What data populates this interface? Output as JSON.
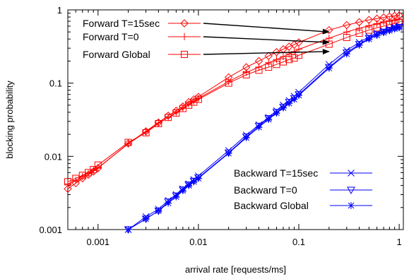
{
  "chart_data": {
    "type": "line",
    "title": "",
    "xlabel": "arrival rate [requests/ms]",
    "ylabel": "blocking probability",
    "x_scale": "log",
    "y_scale": "log",
    "xlim": [
      0.0005,
      1.1
    ],
    "ylim": [
      0.001,
      1
    ],
    "grid": false,
    "legend_placement": [
      "top-left",
      "bottom-right"
    ],
    "x_ticks": [
      {
        "value": 0.001,
        "label": "0.001"
      },
      {
        "value": 0.01,
        "label": "0.01"
      },
      {
        "value": 0.1,
        "label": "0.1"
      },
      {
        "value": 1,
        "label": "1"
      }
    ],
    "y_ticks": [
      {
        "value": 0.001,
        "label": "0.001"
      },
      {
        "value": 0.01,
        "label": "0.01"
      },
      {
        "value": 0.1,
        "label": "0.1"
      },
      {
        "value": 1,
        "label": "1"
      }
    ],
    "series": [
      {
        "name": "Forward T=15sec",
        "color": "#ff0000",
        "marker": "diamond",
        "x": [
          0.0005,
          0.0006,
          0.0007,
          0.0008,
          0.0009,
          0.001,
          0.002,
          0.003,
          0.004,
          0.005,
          0.006,
          0.007,
          0.008,
          0.009,
          0.01,
          0.02,
          0.03,
          0.04,
          0.05,
          0.06,
          0.07,
          0.08,
          0.09,
          0.1,
          0.2,
          0.3,
          0.4,
          0.5,
          0.6,
          0.7,
          0.8,
          0.9,
          1.0
        ],
        "y": [
          0.0036,
          0.0043,
          0.005,
          0.0056,
          0.0062,
          0.0069,
          0.015,
          0.022,
          0.029,
          0.036,
          0.042,
          0.048,
          0.055,
          0.06,
          0.065,
          0.12,
          0.165,
          0.2,
          0.235,
          0.265,
          0.29,
          0.315,
          0.335,
          0.36,
          0.53,
          0.62,
          0.68,
          0.73,
          0.76,
          0.79,
          0.81,
          0.83,
          0.84
        ]
      },
      {
        "name": "Forward T=0",
        "color": "#ff0000",
        "marker": "plus",
        "x": [
          0.0005,
          0.0006,
          0.0007,
          0.0008,
          0.0009,
          0.001,
          0.002,
          0.003,
          0.004,
          0.005,
          0.006,
          0.007,
          0.008,
          0.009,
          0.01,
          0.02,
          0.03,
          0.04,
          0.05,
          0.06,
          0.07,
          0.08,
          0.09,
          0.1,
          0.2,
          0.3,
          0.4,
          0.5,
          0.6,
          0.7,
          0.8,
          0.9,
          1.0
        ],
        "y": [
          0.0042,
          0.0047,
          0.0053,
          0.0058,
          0.0064,
          0.007,
          0.0148,
          0.0215,
          0.0285,
          0.034,
          0.04,
          0.046,
          0.052,
          0.057,
          0.062,
          0.105,
          0.14,
          0.165,
          0.19,
          0.21,
          0.23,
          0.25,
          0.27,
          0.29,
          0.41,
          0.5,
          0.56,
          0.61,
          0.65,
          0.69,
          0.71,
          0.73,
          0.75
        ]
      },
      {
        "name": "Forward Global",
        "color": "#ff0000",
        "marker": "square",
        "x": [
          0.0005,
          0.0006,
          0.0007,
          0.0008,
          0.0009,
          0.001,
          0.002,
          0.003,
          0.004,
          0.005,
          0.006,
          0.007,
          0.008,
          0.009,
          0.01,
          0.02,
          0.03,
          0.04,
          0.05,
          0.06,
          0.07,
          0.08,
          0.09,
          0.1,
          0.2,
          0.3,
          0.4,
          0.5,
          0.6,
          0.7,
          0.8,
          0.9,
          1.0
        ],
        "y": [
          0.0045,
          0.005,
          0.0055,
          0.006,
          0.0066,
          0.0076,
          0.0155,
          0.021,
          0.028,
          0.034,
          0.039,
          0.045,
          0.05,
          0.055,
          0.06,
          0.1,
          0.13,
          0.15,
          0.165,
          0.18,
          0.195,
          0.21,
          0.22,
          0.24,
          0.34,
          0.42,
          0.48,
          0.53,
          0.57,
          0.6,
          0.63,
          0.65,
          0.67
        ]
      },
      {
        "name": "Backward T=15sec",
        "color": "#0000ff",
        "marker": "x",
        "x": [
          0.002,
          0.003,
          0.004,
          0.005,
          0.006,
          0.007,
          0.008,
          0.009,
          0.01,
          0.02,
          0.03,
          0.04,
          0.05,
          0.06,
          0.07,
          0.08,
          0.09,
          0.1,
          0.2,
          0.3,
          0.4,
          0.5,
          0.6,
          0.7,
          0.8,
          0.9,
          1.0
        ],
        "y": [
          0.001,
          0.0015,
          0.0019,
          0.0025,
          0.003,
          0.0036,
          0.0042,
          0.0048,
          0.0054,
          0.012,
          0.0195,
          0.027,
          0.034,
          0.042,
          0.05,
          0.058,
          0.066,
          0.075,
          0.18,
          0.28,
          0.36,
          0.43,
          0.48,
          0.52,
          0.55,
          0.58,
          0.6
        ]
      },
      {
        "name": "Backward T=0",
        "color": "#0000ff",
        "marker": "triangle-down",
        "x": [
          0.002,
          0.003,
          0.004,
          0.005,
          0.006,
          0.007,
          0.008,
          0.009,
          0.01,
          0.02,
          0.03,
          0.04,
          0.05,
          0.06,
          0.07,
          0.08,
          0.09,
          0.1,
          0.2,
          0.3,
          0.4,
          0.5,
          0.6,
          0.7,
          0.8,
          0.9,
          1.0
        ],
        "y": [
          0.001,
          0.0014,
          0.0018,
          0.0024,
          0.0029,
          0.0035,
          0.0041,
          0.0046,
          0.0051,
          0.0112,
          0.0185,
          0.026,
          0.033,
          0.04,
          0.047,
          0.055,
          0.062,
          0.07,
          0.165,
          0.26,
          0.34,
          0.41,
          0.46,
          0.5,
          0.53,
          0.56,
          0.58
        ]
      },
      {
        "name": "Backward Global",
        "color": "#0000ff",
        "marker": "asterisk",
        "x": [
          0.002,
          0.003,
          0.004,
          0.005,
          0.006,
          0.007,
          0.008,
          0.009,
          0.01,
          0.02,
          0.03,
          0.04,
          0.05,
          0.06,
          0.07,
          0.08,
          0.09,
          0.1,
          0.2,
          0.3,
          0.4,
          0.5,
          0.6,
          0.7,
          0.8,
          0.9,
          1.0
        ],
        "y": [
          0.001,
          0.0014,
          0.0018,
          0.0023,
          0.0028,
          0.0034,
          0.004,
          0.0045,
          0.005,
          0.011,
          0.018,
          0.025,
          0.032,
          0.039,
          0.046,
          0.053,
          0.06,
          0.068,
          0.16,
          0.25,
          0.33,
          0.4,
          0.45,
          0.49,
          0.52,
          0.55,
          0.57
        ]
      }
    ],
    "annotations": [
      {
        "type": "arrow",
        "from_series": "Forward T=15sec",
        "to": {
          "x": 0.2,
          "y": 0.5
        }
      },
      {
        "type": "arrow",
        "from_series": "Forward T=0",
        "to": {
          "x": 0.2,
          "y": 0.36
        }
      },
      {
        "type": "arrow",
        "from_series": "Forward Global",
        "to": {
          "x": 0.2,
          "y": 0.27
        }
      }
    ]
  }
}
